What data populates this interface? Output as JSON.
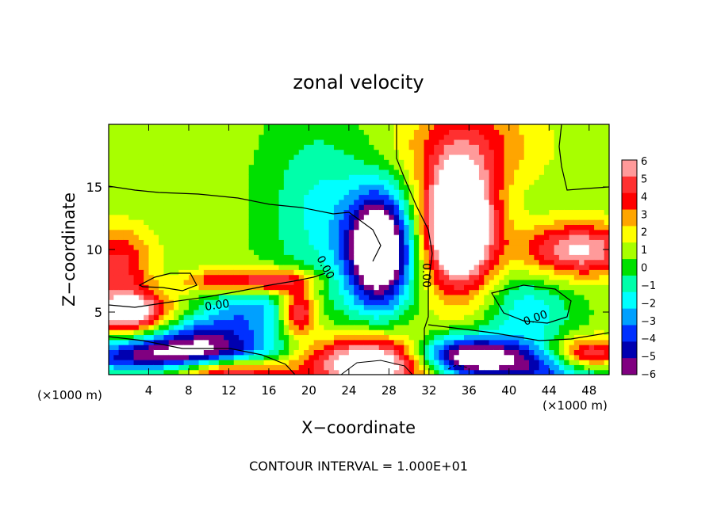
{
  "chart_data": {
    "type": "heatmap",
    "title": "zonal velocity",
    "xlabel": "X−coordinate",
    "ylabel": "Z−coordinate",
    "x_unit_left": "(×1000 m)",
    "x_unit_right": "(×1000 m)",
    "footer": "CONTOUR INTERVAL = 1.000E+01",
    "xlim": [
      0,
      50
    ],
    "ylim": [
      0,
      20
    ],
    "x_ticks": [
      4,
      8,
      12,
      16,
      20,
      24,
      28,
      32,
      36,
      40,
      44,
      48
    ],
    "y_ticks": [
      5,
      10,
      15
    ],
    "contour_label": "0.00",
    "colorbar": {
      "ticks": [
        "6",
        "5",
        "4",
        "3",
        "2",
        "1",
        "0",
        "−1",
        "−2",
        "−3",
        "−4",
        "−5",
        "−6"
      ],
      "values": [
        6,
        5,
        4,
        3,
        2,
        1,
        0,
        -1,
        -2,
        -3,
        -4,
        -5,
        -6
      ],
      "colors": [
        "#ff9a9a",
        "#ff3030",
        "#ff0000",
        "#ffa500",
        "#ffff00",
        "#a8ff00",
        "#00e000",
        "#00ffaa",
        "#00ffff",
        "#00a0ff",
        "#0030ff",
        "#0000b0",
        "#800080"
      ],
      "range": [
        -6,
        6
      ]
    },
    "field": {
      "description_grid": "u(x,z) on x 0-50 km, z 0-20 km",
      "background": 0.8,
      "features": [
        {
          "x": 27,
          "z": 10,
          "sx": 2.3,
          "sz": 3.2,
          "amp": -11
        },
        {
          "x": 21,
          "z": 13,
          "sx": 3.5,
          "sz": 5,
          "amp": -2.5
        },
        {
          "x": 35,
          "z": 12,
          "sx": 2.5,
          "sz": 3.5,
          "amp": 11
        },
        {
          "x": 36,
          "z": 18.5,
          "sx": 5,
          "sz": 2.5,
          "amp": 3
        },
        {
          "x": 47,
          "z": 10,
          "sx": 4,
          "sz": 1.5,
          "amp": 6
        },
        {
          "x": 2,
          "z": 5,
          "sx": 3,
          "sz": 1.2,
          "amp": 8
        },
        {
          "x": 1,
          "z": 9,
          "sx": 2.5,
          "sz": 2,
          "amp": 4
        },
        {
          "x": 10,
          "z": 3,
          "sx": 5,
          "sz": 1.4,
          "amp": -5
        },
        {
          "x": 14,
          "z": 5.5,
          "sx": 3,
          "sz": 1.2,
          "amp": -3
        },
        {
          "x": 19,
          "z": 5,
          "sx": 1.3,
          "sz": 1.3,
          "amp": 6
        },
        {
          "x": 10,
          "z": 7.5,
          "sx": 5,
          "sz": 0.7,
          "amp": 4
        },
        {
          "x": 17,
          "z": 7.5,
          "sx": 2.5,
          "sz": 0.7,
          "amp": 4
        },
        {
          "x": 6,
          "z": 7.5,
          "sx": 2.5,
          "sz": 0.8,
          "amp": -2.5
        },
        {
          "x": 42,
          "z": 5,
          "sx": 3,
          "sz": 2,
          "amp": -3
        },
        {
          "x": 5,
          "z": 1.5,
          "sx": 7,
          "sz": 1,
          "amp": -6
        },
        {
          "x": 12,
          "z": 0.3,
          "sx": 4,
          "sz": 0.8,
          "amp": 6
        },
        {
          "x": 27,
          "z": 1,
          "sx": 5,
          "sz": 1.5,
          "amp": 9
        },
        {
          "x": 35,
          "z": 1.5,
          "sx": 4,
          "sz": 1.2,
          "amp": -9
        },
        {
          "x": 45,
          "z": 0.7,
          "sx": 6,
          "sz": 1.2,
          "amp": -6
        },
        {
          "x": 48,
          "z": 1.5,
          "sx": 3,
          "sz": 1,
          "amp": 8
        }
      ]
    }
  }
}
